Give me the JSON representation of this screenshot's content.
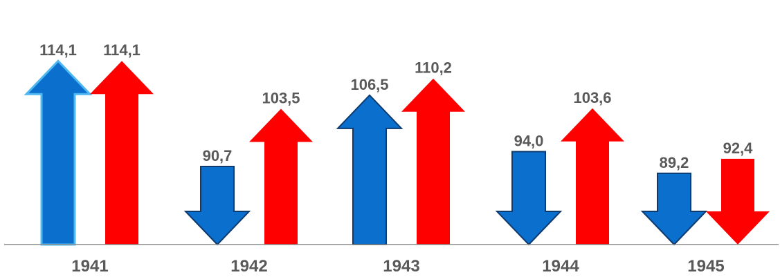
{
  "chart_data": {
    "type": "bar",
    "categories": [
      "1941",
      "1942",
      "1943",
      "1944",
      "1945"
    ],
    "series": [
      {
        "values": [
          114.1,
          90.7,
          106.5,
          94.0,
          89.2
        ],
        "value_labels": [
          "114,1",
          "90,7",
          "106,5",
          "94,0",
          "89,2"
        ],
        "directions": [
          "up",
          "down",
          "up",
          "down",
          "down"
        ],
        "color": "#0B6FCE"
      },
      {
        "values": [
          114.1,
          103.5,
          110.2,
          103.6,
          92.4
        ],
        "value_labels": [
          "114,1",
          "103,5",
          "110,2",
          "103,6",
          "92,4"
        ],
        "directions": [
          "up",
          "up",
          "up",
          "up",
          "down"
        ],
        "color": "#FF0000"
      }
    ],
    "marker": "arrow",
    "baseline": 73.4,
    "ylim": [
      73.4,
      117.2
    ],
    "grid": false,
    "legend": "none",
    "axis_color": "#8C8C8C",
    "label_color": "#595959",
    "arrow_outline": "#0F3A6E",
    "first_arrow_outline": "#4FB8F0"
  }
}
